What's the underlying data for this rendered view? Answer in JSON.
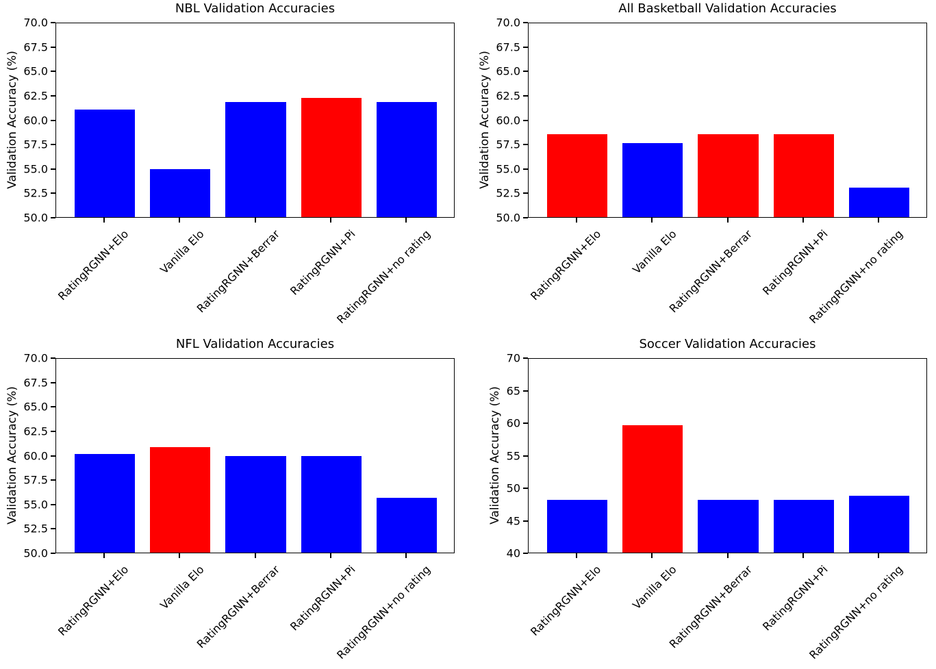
{
  "figure": {
    "background": "#ffffff",
    "text_color": "#000000",
    "default_bar_color": "#0000ff",
    "highlight_bar_color": "#ff0000",
    "layout": "2x2 grid of bar subplots"
  },
  "chart_data": [
    {
      "type": "bar",
      "position": "top-left",
      "title": "NBL Validation Accuracies",
      "xlabel": "",
      "ylabel": "Validation Accuracy (%)",
      "categories": [
        "RatingRGNN+Elo",
        "Vanilla Elo",
        "RatingRGNN+Berrar",
        "RatingRGNN+Pi",
        "RatingRGNN+no rating"
      ],
      "values": [
        61.0,
        54.9,
        61.8,
        62.2,
        61.8
      ],
      "bar_colors": [
        "#0000ff",
        "#0000ff",
        "#0000ff",
        "#ff0000",
        "#0000ff"
      ],
      "ylim": [
        50,
        70
      ],
      "ytick_labels": [
        "50.0",
        "52.5",
        "55.0",
        "57.5",
        "60.0",
        "62.5",
        "65.0",
        "67.5",
        "70.0"
      ],
      "xtick_rotation_deg": 45,
      "grid": false,
      "legend": false
    },
    {
      "type": "bar",
      "position": "top-right",
      "title": "All Basketball Validation Accuracies",
      "xlabel": "",
      "ylabel": "Validation Accuracy (%)",
      "categories": [
        "RatingRGNN+Elo",
        "Vanilla Elo",
        "RatingRGNN+Berrar",
        "RatingRGNN+Pi",
        "RatingRGNN+no rating"
      ],
      "values": [
        58.5,
        57.6,
        58.5,
        58.5,
        53.0
      ],
      "bar_colors": [
        "#ff0000",
        "#0000ff",
        "#ff0000",
        "#ff0000",
        "#0000ff"
      ],
      "ylim": [
        50,
        70
      ],
      "ytick_labels": [
        "50.0",
        "52.5",
        "55.0",
        "57.5",
        "60.0",
        "62.5",
        "65.0",
        "67.5",
        "70.0"
      ],
      "xtick_rotation_deg": 45,
      "grid": false,
      "legend": false
    },
    {
      "type": "bar",
      "position": "bottom-left",
      "title": "NFL Validation Accuracies",
      "xlabel": "",
      "ylabel": "Validation Accuracy (%)",
      "categories": [
        "RatingRGNN+Elo",
        "Vanilla Elo",
        "RatingRGNN+Berrar",
        "RatingRGNN+Pi",
        "RatingRGNN+no rating"
      ],
      "values": [
        60.1,
        60.8,
        59.9,
        59.9,
        55.6
      ],
      "bar_colors": [
        "#0000ff",
        "#ff0000",
        "#0000ff",
        "#0000ff",
        "#0000ff"
      ],
      "ylim": [
        50,
        70
      ],
      "ytick_labels": [
        "50.0",
        "52.5",
        "55.0",
        "57.5",
        "60.0",
        "62.5",
        "65.0",
        "67.5",
        "70.0"
      ],
      "xtick_rotation_deg": 45,
      "grid": false,
      "legend": false
    },
    {
      "type": "bar",
      "position": "bottom-right",
      "title": "Soccer Validation Accuracies",
      "xlabel": "",
      "ylabel": "Validation Accuracy (%)",
      "categories": [
        "RatingRGNN+Elo",
        "Vanilla Elo",
        "RatingRGNN+Berrar",
        "RatingRGNN+Pi",
        "RatingRGNN+no rating"
      ],
      "values": [
        48.1,
        59.6,
        48.1,
        48.1,
        48.7
      ],
      "bar_colors": [
        "#0000ff",
        "#ff0000",
        "#0000ff",
        "#0000ff",
        "#0000ff"
      ],
      "ylim": [
        40,
        70
      ],
      "ytick_labels": [
        "40",
        "45",
        "50",
        "55",
        "60",
        "65",
        "70"
      ],
      "xtick_rotation_deg": 45,
      "grid": false,
      "legend": false
    }
  ]
}
